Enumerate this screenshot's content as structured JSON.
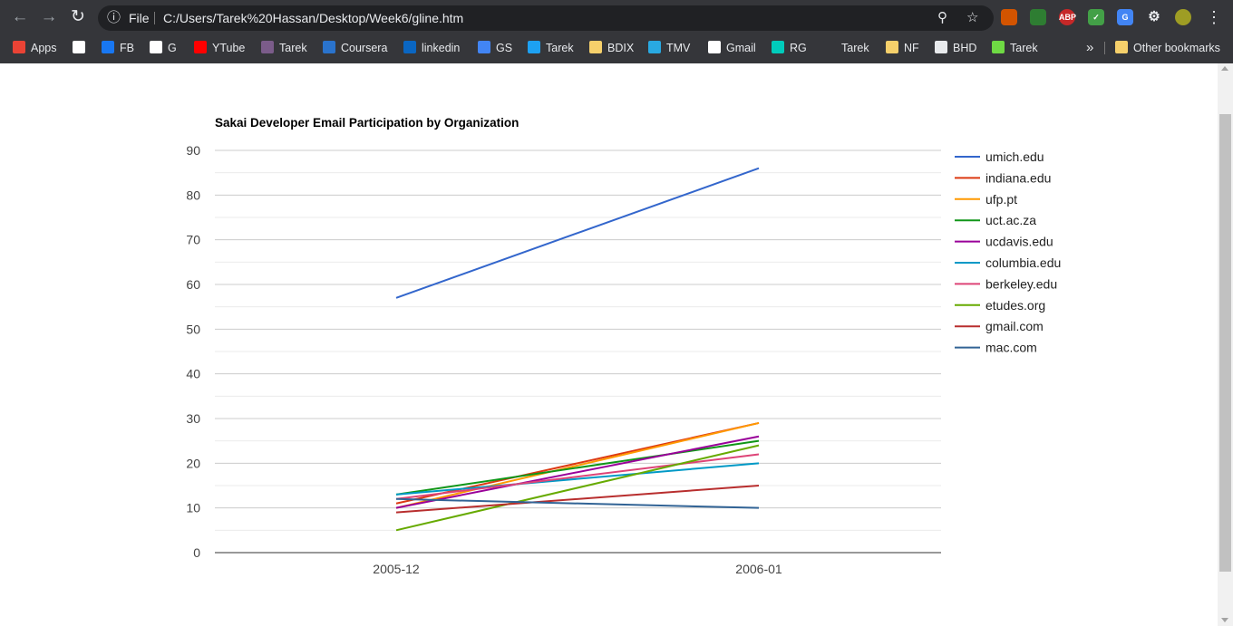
{
  "browser": {
    "url_scheme_label": "File",
    "url": "C:/Users/Tarek%20Hassan/Desktop/Week6/gline.htm",
    "bookmarks": [
      {
        "label": "Apps",
        "icon": "apps-grid-icon"
      },
      {
        "label": "",
        "icon": "wikipedia-icon"
      },
      {
        "label": "FB",
        "icon": "facebook-icon"
      },
      {
        "label": "G",
        "icon": "google-icon"
      },
      {
        "label": "YTube",
        "icon": "youtube-icon"
      },
      {
        "label": "Tarek",
        "icon": "profile-icon"
      },
      {
        "label": "Coursera",
        "icon": "coursera-icon"
      },
      {
        "label": "linkedin",
        "icon": "linkedin-icon"
      },
      {
        "label": "GS",
        "icon": "scholar-icon"
      },
      {
        "label": "Tarek",
        "icon": "twitter-icon"
      },
      {
        "label": "BDIX",
        "icon": "folder-icon"
      },
      {
        "label": "TMV",
        "icon": "play-icon"
      },
      {
        "label": "Gmail",
        "icon": "gmail-icon"
      },
      {
        "label": "RG",
        "icon": "researchgate-icon"
      },
      {
        "label": "Tarek",
        "icon": "k-icon"
      },
      {
        "label": "NF",
        "icon": "folder-icon"
      },
      {
        "label": "BHD",
        "icon": "globe-icon"
      },
      {
        "label": "Tarek",
        "icon": "upwork-icon"
      }
    ],
    "overflow_label": "»",
    "other_bookmarks_label": "Other bookmarks"
  },
  "chart_data": {
    "type": "line",
    "title": "Sakai Developer Email Participation by Organization",
    "categories": [
      "2005-12",
      "2006-01"
    ],
    "ylim": [
      0,
      90
    ],
    "yticks": [
      0,
      10,
      20,
      30,
      40,
      50,
      60,
      70,
      80,
      90
    ],
    "grid": true,
    "legend_position": "right",
    "series": [
      {
        "name": "umich.edu",
        "values": [
          57,
          86
        ],
        "color": "#3366cc"
      },
      {
        "name": "indiana.edu",
        "values": [
          11,
          29
        ],
        "color": "#dc3912"
      },
      {
        "name": "ufp.pt",
        "values": [
          10,
          29
        ],
        "color": "#ff9900"
      },
      {
        "name": "uct.ac.za",
        "values": [
          13,
          25
        ],
        "color": "#109618"
      },
      {
        "name": "ucdavis.edu",
        "values": [
          10,
          26
        ],
        "color": "#990099"
      },
      {
        "name": "columbia.edu",
        "values": [
          13,
          20
        ],
        "color": "#0099c6"
      },
      {
        "name": "berkeley.edu",
        "values": [
          12,
          22
        ],
        "color": "#dd4477"
      },
      {
        "name": "etudes.org",
        "values": [
          5,
          24
        ],
        "color": "#66aa00"
      },
      {
        "name": "gmail.com",
        "values": [
          9,
          15
        ],
        "color": "#b82e2e"
      },
      {
        "name": "mac.com",
        "values": [
          12,
          10
        ],
        "color": "#316395"
      }
    ]
  }
}
